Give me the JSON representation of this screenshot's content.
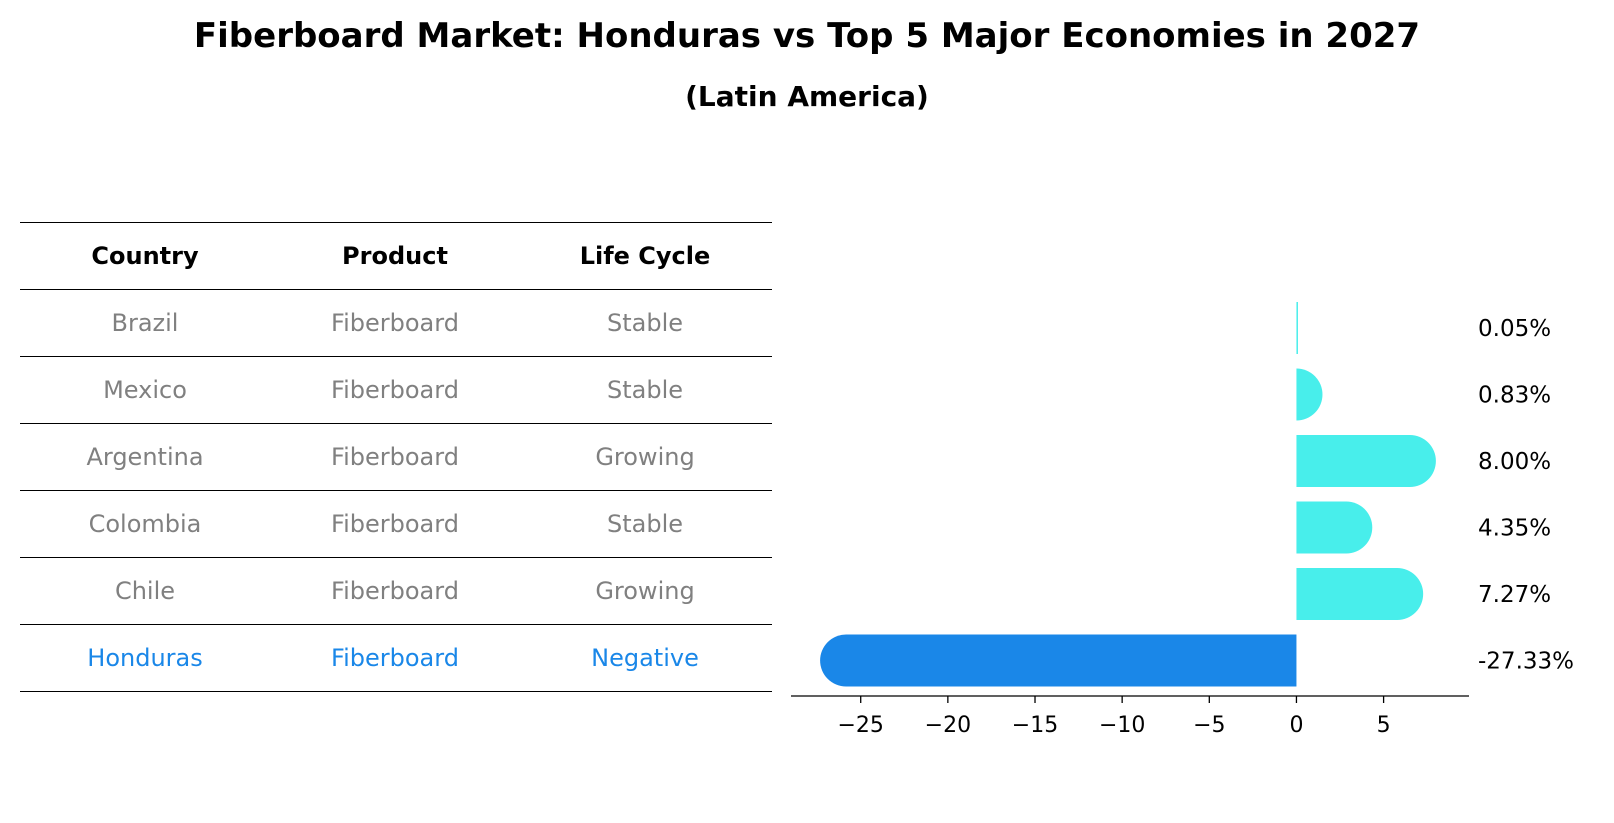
{
  "title": "Fiberboard Market: Honduras vs Top 5 Major Economies in 2027",
  "subtitle": "(Latin America)",
  "table": {
    "headers": [
      "Country",
      "Product",
      "Life Cycle"
    ],
    "rows": [
      {
        "country": "Brazil",
        "product": "Fiberboard",
        "life_cycle": "Stable"
      },
      {
        "country": "Mexico",
        "product": "Fiberboard",
        "life_cycle": "Stable"
      },
      {
        "country": "Argentina",
        "product": "Fiberboard",
        "life_cycle": "Growing"
      },
      {
        "country": "Colombia",
        "product": "Fiberboard",
        "life_cycle": "Stable"
      },
      {
        "country": "Chile",
        "product": "Fiberboard",
        "life_cycle": "Growing"
      },
      {
        "country": "Honduras",
        "product": "Fiberboard",
        "life_cycle": "Negative"
      }
    ],
    "text_color": "#808080",
    "highlight_color": "#1a87e8"
  },
  "chart_data": {
    "type": "bar",
    "orientation": "horizontal",
    "categories": [
      "Brazil",
      "Mexico",
      "Argentina",
      "Colombia",
      "Chile",
      "Honduras"
    ],
    "values": [
      0.05,
      0.83,
      8.0,
      4.35,
      7.27,
      -27.33
    ],
    "value_labels": [
      "0.05%",
      "0.83%",
      "8.00%",
      "4.35%",
      "7.27%",
      "-27.33%"
    ],
    "xlim": [
      -29,
      9.9
    ],
    "xticks": [
      -25,
      -20,
      -15,
      -10,
      -5,
      0,
      5
    ],
    "xtick_labels": [
      "−25",
      "−20",
      "−15",
      "−10",
      "−5",
      "0",
      "5"
    ],
    "grid": false,
    "bar_color": "#48eeeb",
    "highlight_color": "#1a87e8",
    "highlight_category": "Honduras"
  }
}
